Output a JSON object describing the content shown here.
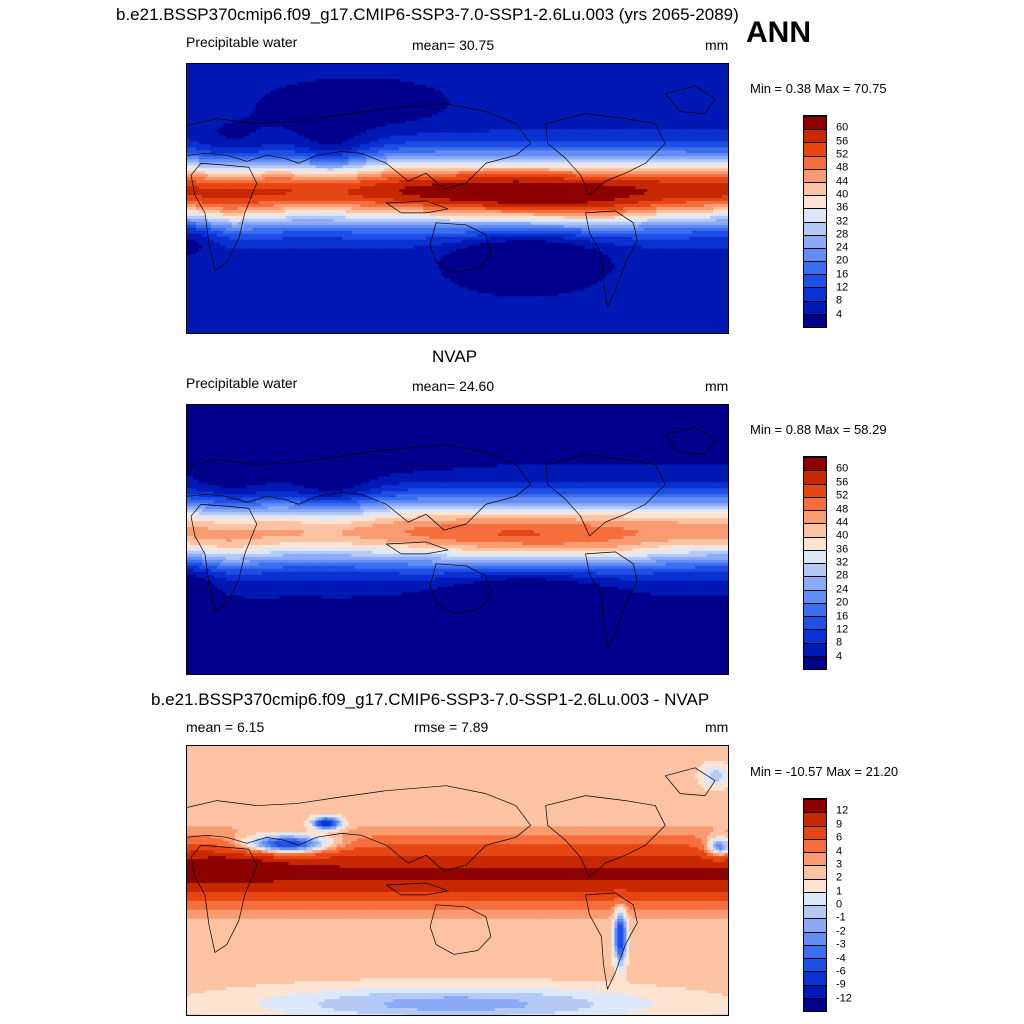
{
  "main_title": "b.e21.BSSP370cmip6.f09_g17.CMIP6-SSP3-7.0-SSP1-2.6Lu.003 (yrs 2065-2089)",
  "season": "ANN",
  "panels": [
    {
      "title": "",
      "left_label": "Precipitable water",
      "center_label": "mean=  30.75",
      "units": "mm",
      "minmax": "Min =   0.38 Max =  70.75",
      "pattern": "model"
    },
    {
      "title": "NVAP",
      "left_label": "Precipitable water",
      "center_label": "mean=  24.60",
      "units": "mm",
      "minmax": "Min =   0.88 Max =  58.29",
      "pattern": "obs"
    },
    {
      "title": "b.e21.BSSP370cmip6.f09_g17.CMIP6-SSP3-7.0-SSP1-2.6Lu.003 - NVAP",
      "left_label": "mean =   6.15",
      "center_label": "rmse =   7.89",
      "units": "mm",
      "minmax": "Min = -10.57 Max =  21.20",
      "pattern": "diff"
    }
  ],
  "colorbars": {
    "field": {
      "ticks": [
        "4",
        "8",
        "12",
        "16",
        "20",
        "24",
        "28",
        "32",
        "36",
        "40",
        "44",
        "48",
        "52",
        "56",
        "60"
      ],
      "colors": [
        "#00008c",
        "#0018b4",
        "#0a32d2",
        "#1e50e6",
        "#3c6ef0",
        "#648cf5",
        "#8caaf5",
        "#b4caf5",
        "#dce8fa",
        "#fde4d2",
        "#fcc3a3",
        "#fa9a70",
        "#f56e3c",
        "#e64614",
        "#c82800",
        "#8c0000"
      ]
    },
    "diff": {
      "ticks": [
        "-12",
        "-9",
        "-6",
        "-4",
        "-3",
        "-2",
        "-1",
        "0",
        "1",
        "2",
        "3",
        "4",
        "6",
        "9",
        "12"
      ],
      "colors": [
        "#00008c",
        "#0018b4",
        "#0a32d2",
        "#1e50e6",
        "#3c6ef0",
        "#648cf5",
        "#8caaf5",
        "#b4caf5",
        "#dce8fa",
        "#fde4d2",
        "#fcc3a3",
        "#fa9a70",
        "#f56e3c",
        "#e64614",
        "#c82800",
        "#8c0000"
      ]
    }
  }
}
